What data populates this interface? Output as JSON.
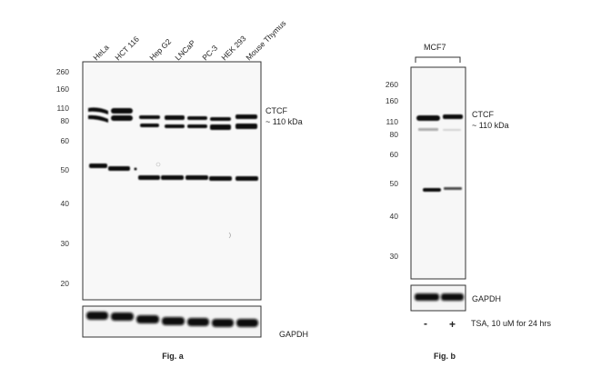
{
  "fig_a": {
    "lanes": [
      "HeLa",
      "HCT 116",
      "Hep G2",
      "LNCaP",
      "PC-3",
      "HEK 293",
      "Mouse Thymus"
    ],
    "mw_markers": [
      "260",
      "160",
      "110",
      "80",
      "60",
      "50",
      "40",
      "30",
      "20"
    ],
    "target_label": "CTCF",
    "target_size": "~ 110 kDa",
    "loading_label": "GAPDH",
    "caption": "Fig. a"
  },
  "fig_b": {
    "group_label": "MCF7",
    "mw_markers": [
      "260",
      "160",
      "110",
      "80",
      "60",
      "50",
      "40",
      "30"
    ],
    "target_label": "CTCF",
    "target_size": "~ 110 kDa",
    "loading_label": "GAPDH",
    "treatment_minus": "-",
    "treatment_plus": "+",
    "treatment_label": "TSA, 10 uM for 24 hrs",
    "caption": "Fig. b"
  }
}
